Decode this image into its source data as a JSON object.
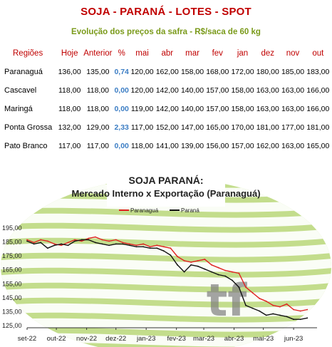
{
  "header": {
    "title": "SOJA - PARANÁ - LOTES - SPOT",
    "subtitle": "Evolução dos preços da safra - R$/saca de 60 kg"
  },
  "table": {
    "columns": [
      "Regiões",
      "Hoje",
      "Anterior",
      "%",
      "mai",
      "abr",
      "mar",
      "fev",
      "jan",
      "dez",
      "nov",
      "out"
    ],
    "rows": [
      [
        "Paranaguá",
        "136,00",
        "135,00",
        "0,74",
        "120,00",
        "162,00",
        "158,00",
        "168,00",
        "172,00",
        "180,00",
        "185,00",
        "183,00"
      ],
      [
        "Cascavel",
        "118,00",
        "118,00",
        "0,00",
        "120,00",
        "142,00",
        "140,00",
        "157,00",
        "158,00",
        "163,00",
        "163,00",
        "166,00"
      ],
      [
        "Maringá",
        "118,00",
        "118,00",
        "0,00",
        "119,00",
        "142,00",
        "140,00",
        "157,00",
        "158,00",
        "163,00",
        "163,00",
        "166,00"
      ],
      [
        "Ponta Grossa",
        "132,00",
        "129,00",
        "2,33",
        "117,00",
        "152,00",
        "147,00",
        "165,00",
        "170,00",
        "181,00",
        "177,00",
        "181,00"
      ],
      [
        "Pato Branco",
        "117,00",
        "117,00",
        "0,00",
        "118,00",
        "141,00",
        "139,00",
        "156,00",
        "157,00",
        "162,00",
        "163,00",
        "165,00"
      ]
    ]
  },
  "chart_data": {
    "type": "line",
    "title": "SOJA PARANÁ:",
    "subtitle": "Mercado Interno x Exportação (Paranaguá)",
    "watermark": "tf",
    "xlabel": "",
    "ylabel": "",
    "x_ticks": [
      "set-22",
      "out-22",
      "nov-22",
      "dez-22",
      "jan-23",
      "fev-23",
      "mar-23",
      "abr-23",
      "mai-23",
      "jun-23"
    ],
    "y_ticks": [
      "195,00",
      "185,00",
      "175,00",
      "165,00",
      "155,00",
      "145,00",
      "135,00",
      "125,00"
    ],
    "y_tick_values": [
      195,
      185,
      175,
      165,
      155,
      145,
      135,
      125
    ],
    "ylim": [
      123,
      199
    ],
    "legend_position": "top-center",
    "grid": false,
    "series": [
      {
        "name": "Paranaguá",
        "color": "#e02020",
        "x": [
          "2022-09-01",
          "2022-09-08",
          "2022-09-15",
          "2022-09-22",
          "2022-09-29",
          "2022-10-06",
          "2022-10-13",
          "2022-10-20",
          "2022-10-27",
          "2022-11-03",
          "2022-11-10",
          "2022-11-17",
          "2022-11-24",
          "2022-12-01",
          "2022-12-08",
          "2022-12-15",
          "2022-12-22",
          "2022-12-29",
          "2023-01-05",
          "2023-01-12",
          "2023-01-19",
          "2023-01-26",
          "2023-02-02",
          "2023-02-09",
          "2023-02-16",
          "2023-02-23",
          "2023-03-02",
          "2023-03-09",
          "2023-03-16",
          "2023-03-23",
          "2023-03-30",
          "2023-04-06",
          "2023-04-13",
          "2023-04-20",
          "2023-04-27",
          "2023-05-04",
          "2023-05-11",
          "2023-05-18",
          "2023-05-25",
          "2023-06-01",
          "2023-06-08",
          "2023-06-15"
        ],
        "values": [
          186,
          184,
          186,
          185,
          183,
          182,
          184,
          186,
          185,
          187,
          188,
          186,
          185,
          186,
          184,
          183,
          182,
          183,
          181,
          182,
          181,
          180,
          174,
          171,
          170,
          171,
          172,
          168,
          166,
          164,
          163,
          162,
          152,
          148,
          144,
          142,
          139,
          138,
          140,
          136,
          135,
          136
        ]
      },
      {
        "name": "Paraná",
        "color": "#111111",
        "x": [
          "2022-09-01",
          "2022-09-08",
          "2022-09-15",
          "2022-09-22",
          "2022-09-29",
          "2022-10-06",
          "2022-10-13",
          "2022-10-20",
          "2022-10-27",
          "2022-11-03",
          "2022-11-10",
          "2022-11-17",
          "2022-11-24",
          "2022-12-01",
          "2022-12-08",
          "2022-12-15",
          "2022-12-22",
          "2022-12-29",
          "2023-01-05",
          "2023-01-12",
          "2023-01-19",
          "2023-01-26",
          "2023-02-02",
          "2023-02-09",
          "2023-02-16",
          "2023-02-23",
          "2023-03-02",
          "2023-03-09",
          "2023-03-16",
          "2023-03-23",
          "2023-03-30",
          "2023-04-06",
          "2023-04-13",
          "2023-04-20",
          "2023-04-27",
          "2023-05-04",
          "2023-05-11",
          "2023-05-18",
          "2023-05-25",
          "2023-06-01",
          "2023-06-08",
          "2023-06-15"
        ],
        "values": [
          185,
          183,
          184,
          180,
          182,
          183,
          182,
          185,
          186,
          186,
          184,
          183,
          182,
          183,
          183,
          182,
          181,
          181,
          180,
          180,
          178,
          175,
          168,
          163,
          168,
          167,
          165,
          163,
          161,
          160,
          157,
          152,
          139,
          137,
          135,
          132,
          133,
          132,
          131,
          129,
          129,
          130
        ]
      }
    ]
  }
}
